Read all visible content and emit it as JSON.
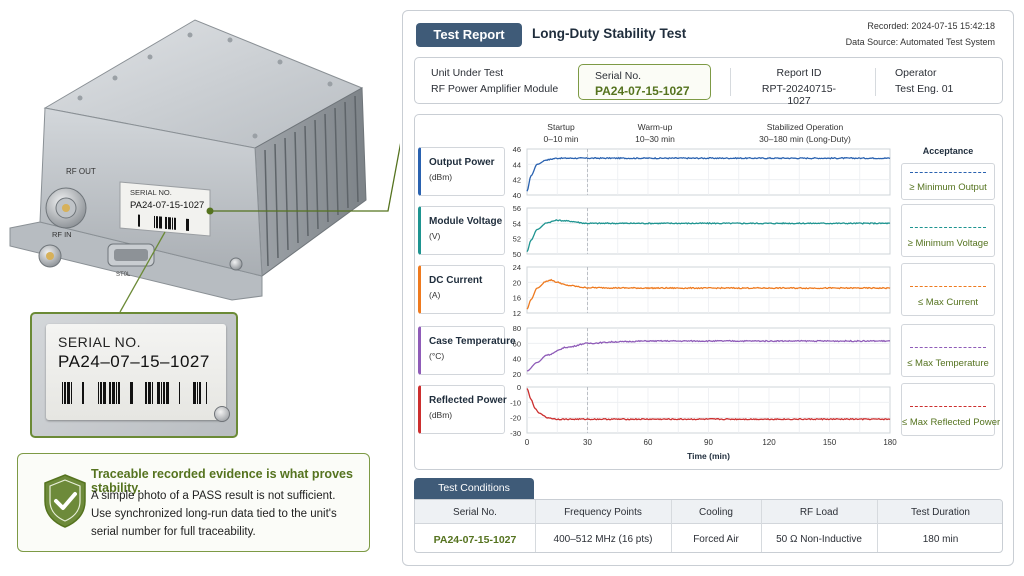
{
  "device": {
    "rf_out_label": "RF OUT",
    "rf_in_label": "RF IN",
    "plate_serial_label": "SERIAL NO.",
    "plate_serial_value": "PA24-07-15-1027",
    "connector_text": "ST0L",
    "inset_serial_label": "SERIAL NO.",
    "inset_serial_value": "PA24–07–15–1027"
  },
  "evidence": {
    "headline": "Traceable recorded evidence is what proves stability.",
    "line1": "A simple photo of a PASS result is not sufficient.",
    "line2": "Use synchronized long-run data tied to the unit's",
    "line3": "serial number for full traceability."
  },
  "report": {
    "badge": "Test Report",
    "title": "Long-Duty Stability Test",
    "recorded": "Recorded: 2024-07-15  15:42:18",
    "source": "Data Source: Automated Test System",
    "info": {
      "unit_label": "Unit Under Test",
      "unit_value": "RF Power Amplifier Module",
      "serial_label": "Serial No.",
      "serial_value": "PA24-07-15-1027",
      "report_label": "Report ID",
      "report_value": "RPT-20240715-1027",
      "operator_label": "Operator",
      "operator_value": "Test Eng. 01"
    }
  },
  "chart_data": {
    "type": "line",
    "xlabel": "Time (min)",
    "xlim": [
      0,
      180
    ],
    "x_ticks": [
      "0",
      "30",
      "60",
      "90",
      "120",
      "150",
      "180"
    ],
    "phase_marker_x": 30,
    "phases": [
      {
        "name": "Startup",
        "range": "0–10 min"
      },
      {
        "name": "Warm-up",
        "range": "10–30 min"
      },
      {
        "name": "Stabilized Operation",
        "range": "30–180 min (Long-Duty)"
      }
    ],
    "acceptance_header": "Acceptance",
    "series": [
      {
        "name": "Output Power",
        "unit": "(dBm)",
        "color": "#2a62b0",
        "ylim": [
          40,
          46
        ],
        "y_ticks": [
          "46",
          "44",
          "42",
          "40"
        ],
        "x": [
          0,
          2,
          5,
          10,
          15,
          20,
          30,
          60,
          90,
          120,
          150,
          180
        ],
        "y": [
          40.5,
          42.5,
          44.0,
          44.6,
          44.8,
          44.8,
          44.8,
          44.8,
          44.8,
          44.8,
          44.8,
          44.8
        ],
        "acceptance": "≥ Minimum Output"
      },
      {
        "name": "Module Voltage",
        "unit": "(V)",
        "color": "#1e9490",
        "ylim": [
          50,
          56
        ],
        "y_ticks": [
          "56",
          "54",
          "52",
          "50"
        ],
        "x": [
          0,
          2,
          5,
          10,
          15,
          20,
          30,
          60,
          90,
          120,
          150,
          180
        ],
        "y": [
          50.3,
          51.8,
          53.2,
          54.1,
          54.4,
          54.3,
          54.0,
          54.0,
          54.0,
          54.0,
          54.0,
          54.0
        ],
        "acceptance": "≥ Minimum Voltage"
      },
      {
        "name": "DC Current",
        "unit": "(A)",
        "color": "#ee7a1f",
        "ylim": [
          12,
          24
        ],
        "y_ticks": [
          "24",
          "20",
          "16",
          "12"
        ],
        "x": [
          0,
          2,
          5,
          10,
          12,
          15,
          20,
          30,
          60,
          90,
          120,
          150,
          180
        ],
        "y": [
          13.0,
          15.5,
          18.5,
          20.4,
          20.6,
          20.0,
          19.2,
          18.6,
          18.5,
          18.5,
          18.5,
          18.5,
          18.5
        ],
        "acceptance": "≤ Max Current"
      },
      {
        "name": "Case Temperature",
        "unit": "(°C)",
        "color": "#8f5cb8",
        "ylim": [
          20,
          80
        ],
        "y_ticks": [
          "80",
          "60",
          "40",
          "20"
        ],
        "x": [
          0,
          5,
          10,
          20,
          30,
          45,
          60,
          90,
          120,
          150,
          180
        ],
        "y": [
          24,
          35,
          45,
          55,
          60,
          62,
          63,
          63,
          63,
          63,
          63
        ],
        "acceptance": "≤ Max Temperature"
      },
      {
        "name": "Reflected Power",
        "unit": "(dBm)",
        "color": "#cc2f2f",
        "ylim": [
          -30,
          0
        ],
        "y_ticks": [
          "0",
          "-10",
          "-20",
          "-30"
        ],
        "x": [
          0,
          2,
          4,
          6,
          10,
          15,
          30,
          60,
          90,
          120,
          150,
          180
        ],
        "y": [
          -1,
          -8,
          -14,
          -17,
          -20,
          -21,
          -21,
          -21,
          -21,
          -21,
          -21,
          -21
        ],
        "acceptance": "≤ Max Reflected Power"
      }
    ]
  },
  "conditions": {
    "tab": "Test Conditions",
    "headers": [
      "Serial No.",
      "Frequency Points",
      "Cooling",
      "RF Load",
      "Test Duration"
    ],
    "values": [
      "PA24-07-15-1027",
      "400–512 MHz (16 pts)",
      "Forced Air",
      "50 Ω Non-Inductive",
      "180 min"
    ]
  }
}
